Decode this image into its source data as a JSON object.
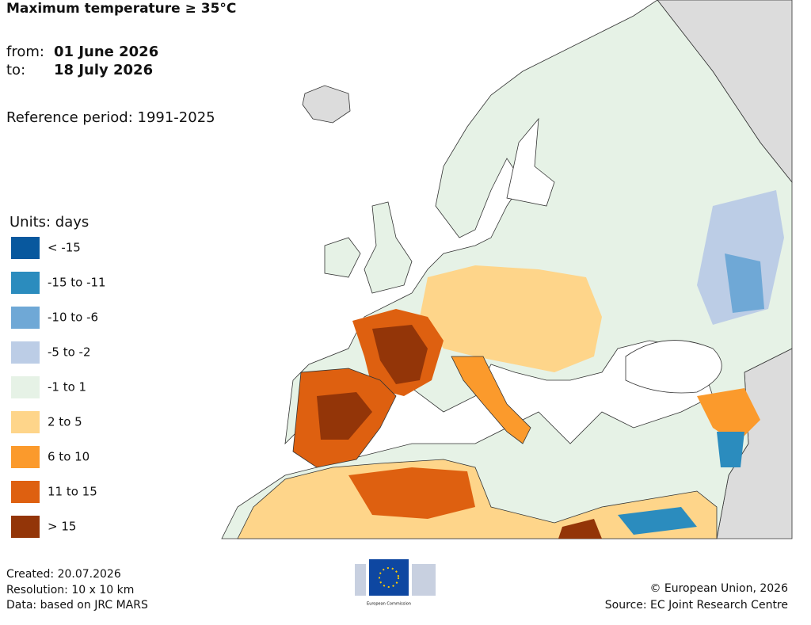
{
  "header": {
    "title": "Maximum temperature ≥ 35°C",
    "from_label": "from:",
    "from_date": "01 June 2026",
    "to_label": "to:",
    "to_date": "18 July 2026",
    "reference": "Reference period: 1991-2025"
  },
  "legend": {
    "title": "Units: days",
    "items": [
      {
        "label": "< -15",
        "color": "#08589e"
      },
      {
        "label": "-15 to -11",
        "color": "#2b8cbe"
      },
      {
        "label": "-10 to -6",
        "color": "#6fa8d6"
      },
      {
        "label": "-5 to -2",
        "color": "#bccde6"
      },
      {
        "label": "-1 to 1",
        "color": "#e6f2e6"
      },
      {
        "label": "2 to 5",
        "color": "#fed58a"
      },
      {
        "label": "6 to 10",
        "color": "#fb9a2c"
      },
      {
        "label": "11 to 15",
        "color": "#de6010"
      },
      {
        "label": "> 15",
        "color": "#933508"
      }
    ]
  },
  "footer": {
    "created": "Created: 20.07.2026",
    "resolution": "Resolution: 10 x 10 km",
    "data_source": "Data: based on JRC MARS",
    "copyright": "© European Union, 2026",
    "source": "Source: EC Joint Research Centre",
    "logo_text": "European Commission"
  }
}
